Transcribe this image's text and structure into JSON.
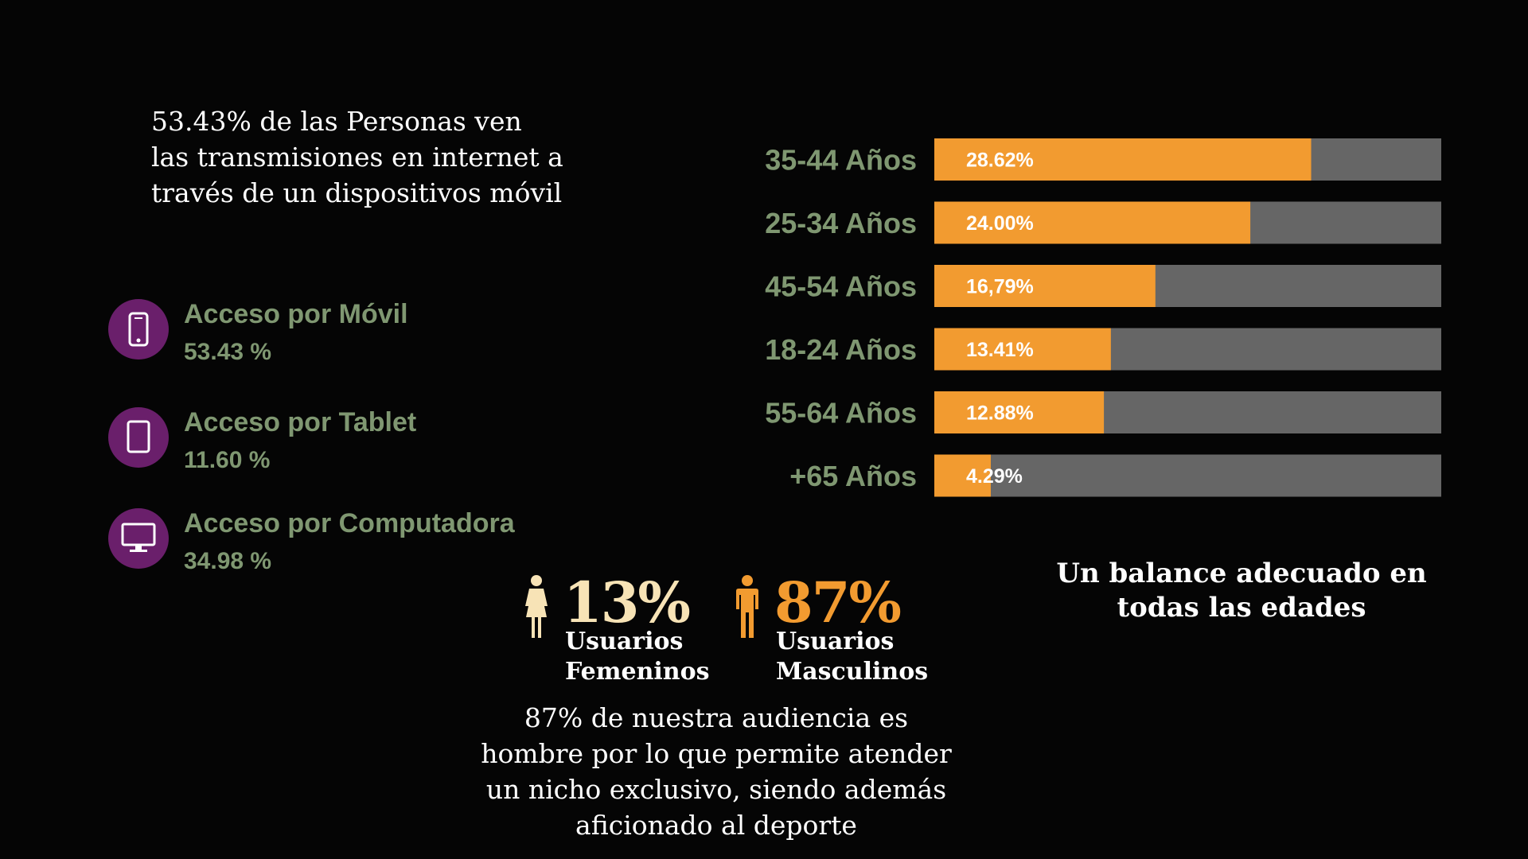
{
  "intro_text": "53.43% de las Personas ven las transmisiones en internet a través de un dispositivos móvil",
  "access": [
    {
      "label": "Acceso por Móvil",
      "value": "53.43 %",
      "icon": "mobile-icon"
    },
    {
      "label": "Acceso por Tablet",
      "value": "11.60 %",
      "icon": "tablet-icon"
    },
    {
      "label": "Acceso por Computadora",
      "value": "34.98 %",
      "icon": "monitor-icon"
    }
  ],
  "colors": {
    "background": "#050505",
    "bar_fill": "#f29b30",
    "bar_track": "#666666",
    "label_green": "#7f9771",
    "icon_circle": "#6a1f6b",
    "female": "#f7e3b6",
    "male": "#f29b30"
  },
  "chart_data": {
    "type": "bar",
    "orientation": "horizontal",
    "categories": [
      "35-44 Años",
      "25-34 Años",
      "45-54 Años",
      "18-24 Años",
      "55-64 Años",
      "+65 Años"
    ],
    "values": [
      28.62,
      24.0,
      16.79,
      13.41,
      12.88,
      4.29
    ],
    "value_labels": [
      "28.62%",
      "24.00%",
      "16,79%",
      "13.41%",
      "12.88%",
      "4.29%"
    ],
    "xlim": [
      0,
      38.5
    ],
    "title": "",
    "xlabel": "",
    "ylabel": "",
    "caption": "Un balance adecuado en todas las edades"
  },
  "gender": {
    "female": {
      "percent": "13%",
      "line1": "Usuarios",
      "line2": "Femeninos",
      "icon": "female-icon"
    },
    "male": {
      "percent": "87%",
      "line1": "Usuarios",
      "line2": "Masculinos",
      "icon": "male-icon"
    }
  },
  "audience_text": "87% de nuestra audiencia es hombre por lo que permite atender un nicho exclusivo, siendo además aficionado al deporte"
}
